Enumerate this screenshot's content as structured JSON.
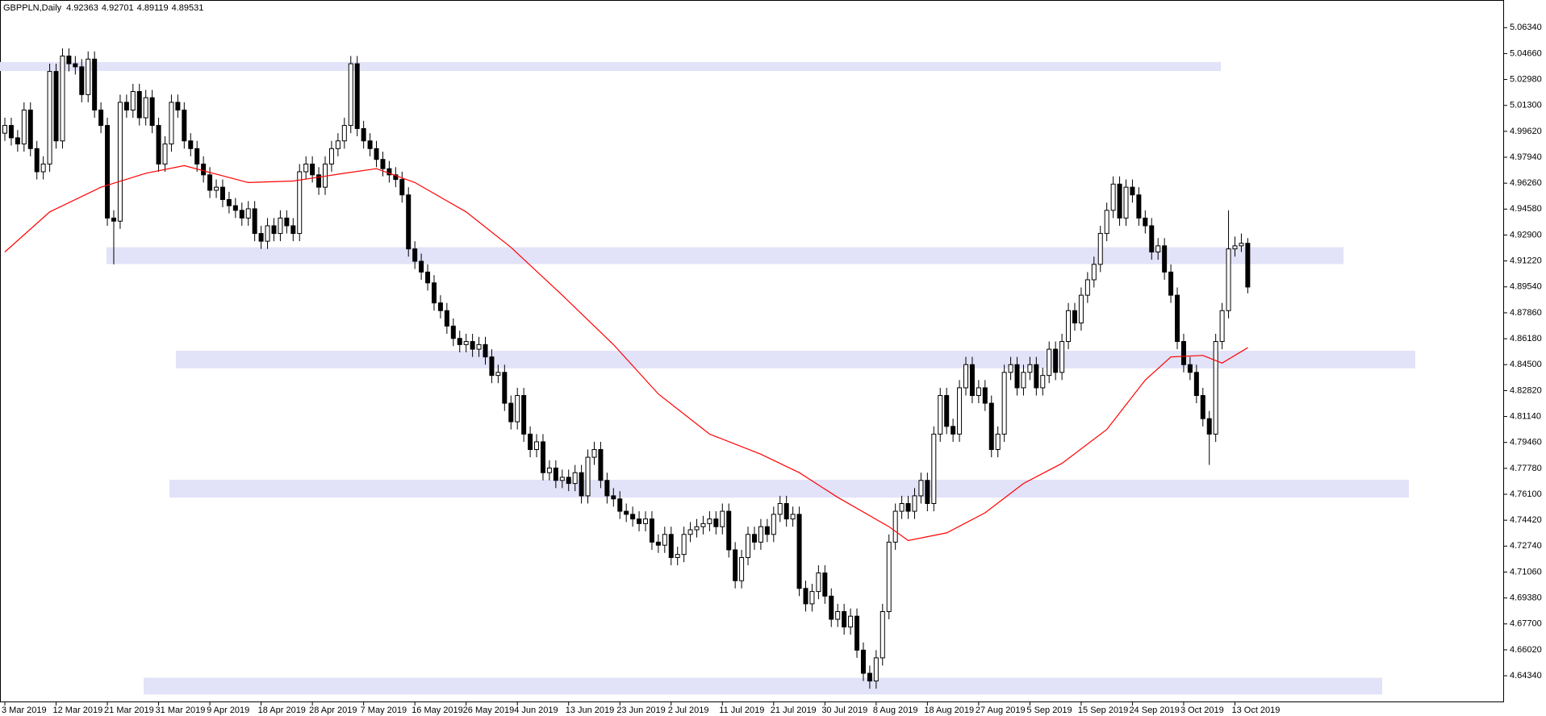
{
  "chart_data": {
    "type": "candlestick",
    "symbol": "GBPPLN,Daily",
    "header_values": [
      4.92363,
      4.92701,
      4.89119,
      4.89531
    ],
    "ylim": [
      4.6262,
      5.0813
    ],
    "yticks": [
      {
        "value": 5.0634,
        "label": "5.06340"
      },
      {
        "value": 5.0466,
        "label": "5.04660"
      },
      {
        "value": 5.0298,
        "label": "5.02980"
      },
      {
        "value": 5.013,
        "label": "5.01300"
      },
      {
        "value": 4.9962,
        "label": "4.99620"
      },
      {
        "value": 4.9794,
        "label": "4.97940"
      },
      {
        "value": 4.9626,
        "label": "4.96260"
      },
      {
        "value": 4.9458,
        "label": "4.94580"
      },
      {
        "value": 4.929,
        "label": "4.92900"
      },
      {
        "value": 4.9122,
        "label": "4.91220"
      },
      {
        "value": 4.8954,
        "label": "4.89540"
      },
      {
        "value": 4.8786,
        "label": "4.87860"
      },
      {
        "value": 4.8618,
        "label": "4.86180"
      },
      {
        "value": 4.845,
        "label": "4.84500"
      },
      {
        "value": 4.8282,
        "label": "4.82820"
      },
      {
        "value": 4.8114,
        "label": "4.81140"
      },
      {
        "value": 4.7946,
        "label": "4.79460"
      },
      {
        "value": 4.7778,
        "label": "4.77780"
      },
      {
        "value": 4.761,
        "label": "4.76100"
      },
      {
        "value": 4.7442,
        "label": "4.74420"
      },
      {
        "value": 4.7274,
        "label": "4.72740"
      },
      {
        "value": 4.7106,
        "label": "4.71060"
      },
      {
        "value": 4.6938,
        "label": "4.69380"
      },
      {
        "value": 4.677,
        "label": "4.67700"
      },
      {
        "value": 4.6602,
        "label": "4.66020"
      },
      {
        "value": 4.6434,
        "label": "4.64340"
      }
    ],
    "xticks": [
      "3 Mar 2019",
      "12 Mar 2019",
      "21 Mar 2019",
      "31 Mar 2019",
      "9 Apr 2019",
      "18 Apr 2019",
      "28 Apr 2019",
      "7 May 2019",
      "16 May 2019",
      "26 May 2019",
      "4 Jun 2019",
      "13 Jun 2019",
      "23 Jun 2019",
      "2 Jul 2019",
      "11 Jul 2019",
      "21 Jul 2019",
      "30 Jul 2019",
      "8 Aug 2019",
      "18 Aug 2019",
      "27 Aug 2019",
      "5 Sep 2019",
      "15 Sep 2019",
      "24 Sep 2019",
      "3 Oct 2019",
      "13 Oct 2019"
    ],
    "up_color": "#ffffff",
    "down_color": "#000000",
    "zone_color": "#e2e2f8",
    "zones": [
      [
        5.0411,
        5.0353
      ],
      [
        4.9211,
        4.9102
      ],
      [
        4.854,
        4.8426
      ],
      [
        4.7704,
        4.7589
      ],
      [
        4.6421,
        4.6313
      ]
    ],
    "ma": {
      "color": "#ff0000",
      "x": [
        0,
        7,
        15,
        22,
        28,
        38,
        45,
        53,
        58,
        64,
        72,
        79,
        87,
        95,
        102,
        110,
        118,
        124,
        130,
        138,
        141,
        147,
        153,
        159,
        165,
        172,
        178,
        182,
        187,
        190,
        194
      ],
      "values": [
        4.918,
        4.944,
        4.96,
        4.969,
        4.974,
        4.963,
        4.964,
        4.969,
        4.972,
        4.963,
        4.944,
        4.921,
        4.89,
        4.858,
        4.826,
        4.8,
        4.787,
        4.775,
        4.759,
        4.74,
        4.731,
        4.736,
        4.749,
        4.768,
        4.781,
        4.803,
        4.835,
        4.85,
        4.851,
        4.846,
        4.856
      ]
    },
    "candles": [
      [
        4.995,
        5.005,
        4.99,
        5.0
      ],
      [
        5.0,
        5.005,
        4.987,
        4.992
      ],
      [
        4.992,
        4.997,
        4.983,
        4.988
      ],
      [
        4.988,
        5.015,
        4.983,
        5.01
      ],
      [
        5.01,
        5.015,
        4.98,
        4.985
      ],
      [
        4.985,
        4.99,
        4.965,
        4.97
      ],
      [
        4.97,
        4.98,
        4.965,
        4.975
      ],
      [
        4.975,
        5.04,
        4.97,
        5.035
      ],
      [
        5.035,
        5.04,
        4.985,
        4.99
      ],
      [
        4.99,
        5.05,
        4.985,
        5.045
      ],
      [
        5.045,
        5.05,
        5.035,
        5.04
      ],
      [
        5.04,
        5.045,
        5.033,
        5.038
      ],
      [
        5.038,
        5.043,
        5.015,
        5.02
      ],
      [
        5.02,
        5.048,
        5.015,
        5.043
      ],
      [
        5.043,
        5.048,
        5.005,
        5.01
      ],
      [
        5.01,
        5.015,
        4.995,
        5.0
      ],
      [
        5.0,
        5.005,
        4.935,
        4.94
      ],
      [
        4.94,
        4.945,
        4.91,
        4.938
      ],
      [
        4.938,
        5.02,
        4.933,
        5.015
      ],
      [
        5.015,
        5.02,
        5.005,
        5.01
      ],
      [
        5.01,
        5.027,
        5.005,
        5.022
      ],
      [
        5.022,
        5.027,
        5.0,
        5.005
      ],
      [
        5.005,
        5.023,
        5.0,
        5.018
      ],
      [
        5.018,
        5.023,
        4.995,
        5.0
      ],
      [
        5.0,
        5.005,
        4.97,
        4.975
      ],
      [
        4.975,
        4.993,
        4.97,
        4.988
      ],
      [
        4.988,
        5.02,
        4.983,
        5.015
      ],
      [
        5.015,
        5.02,
        5.005,
        5.01
      ],
      [
        5.01,
        5.015,
        4.985,
        4.99
      ],
      [
        4.99,
        4.995,
        4.98,
        4.985
      ],
      [
        4.985,
        4.99,
        4.97,
        4.975
      ],
      [
        4.975,
        4.98,
        4.963,
        4.968
      ],
      [
        4.968,
        4.973,
        4.953,
        4.958
      ],
      [
        4.958,
        4.965,
        4.953,
        4.96
      ],
      [
        4.96,
        4.965,
        4.947,
        4.952
      ],
      [
        4.952,
        4.957,
        4.943,
        4.948
      ],
      [
        4.948,
        4.953,
        4.94,
        4.945
      ],
      [
        4.945,
        4.95,
        4.935,
        4.94
      ],
      [
        4.94,
        4.951,
        4.935,
        4.946
      ],
      [
        4.946,
        4.951,
        4.925,
        4.93
      ],
      [
        4.93,
        4.935,
        4.92,
        4.925
      ],
      [
        4.925,
        4.94,
        4.92,
        4.935
      ],
      [
        4.935,
        4.94,
        4.925,
        4.93
      ],
      [
        4.93,
        4.945,
        4.925,
        4.94
      ],
      [
        4.94,
        4.945,
        4.93,
        4.935
      ],
      [
        4.935,
        4.94,
        4.925,
        4.93
      ],
      [
        4.93,
        4.975,
        4.925,
        4.97
      ],
      [
        4.97,
        4.98,
        4.965,
        4.975
      ],
      [
        4.975,
        4.98,
        4.963,
        4.968
      ],
      [
        4.968,
        4.973,
        4.955,
        4.96
      ],
      [
        4.96,
        4.98,
        4.955,
        4.975
      ],
      [
        4.975,
        4.99,
        4.97,
        4.985
      ],
      [
        4.985,
        4.995,
        4.98,
        4.99
      ],
      [
        4.99,
        5.005,
        4.985,
        5.0
      ],
      [
        5.0,
        5.045,
        4.995,
        5.04
      ],
      [
        5.04,
        5.045,
        4.993,
        4.998
      ],
      [
        4.998,
        5.003,
        4.985,
        4.99
      ],
      [
        4.99,
        4.995,
        4.98,
        4.985
      ],
      [
        4.985,
        4.99,
        4.973,
        4.978
      ],
      [
        4.978,
        4.983,
        4.967,
        4.972
      ],
      [
        4.972,
        4.977,
        4.963,
        4.968
      ],
      [
        4.968,
        4.973,
        4.96,
        4.965
      ],
      [
        4.965,
        4.97,
        4.95,
        4.955
      ],
      [
        4.955,
        4.96,
        4.915,
        4.92
      ],
      [
        4.92,
        4.925,
        4.907,
        4.912
      ],
      [
        4.912,
        4.917,
        4.9,
        4.905
      ],
      [
        4.905,
        4.91,
        4.893,
        4.898
      ],
      [
        4.898,
        4.903,
        4.88,
        4.885
      ],
      [
        4.885,
        4.89,
        4.875,
        4.88
      ],
      [
        4.88,
        4.885,
        4.865,
        4.87
      ],
      [
        4.87,
        4.875,
        4.857,
        4.862
      ],
      [
        4.862,
        4.867,
        4.853,
        4.858
      ],
      [
        4.858,
        4.865,
        4.853,
        4.86
      ],
      [
        4.86,
        4.865,
        4.85,
        4.855
      ],
      [
        4.855,
        4.863,
        4.85,
        4.858
      ],
      [
        4.858,
        4.863,
        4.845,
        4.85
      ],
      [
        4.85,
        4.855,
        4.833,
        4.838
      ],
      [
        4.838,
        4.845,
        4.833,
        4.84
      ],
      [
        4.84,
        4.845,
        4.815,
        4.82
      ],
      [
        4.82,
        4.825,
        4.803,
        4.808
      ],
      [
        4.808,
        4.83,
        4.803,
        4.825
      ],
      [
        4.825,
        4.83,
        4.795,
        4.8
      ],
      [
        4.8,
        4.805,
        4.785,
        4.79
      ],
      [
        4.79,
        4.8,
        4.785,
        4.795
      ],
      [
        4.795,
        4.8,
        4.77,
        4.775
      ],
      [
        4.775,
        4.783,
        4.77,
        4.778
      ],
      [
        4.778,
        4.783,
        4.765,
        4.77
      ],
      [
        4.77,
        4.777,
        4.765,
        4.772
      ],
      [
        4.772,
        4.777,
        4.763,
        4.768
      ],
      [
        4.768,
        4.78,
        4.763,
        4.775
      ],
      [
        4.775,
        4.78,
        4.755,
        4.76
      ],
      [
        4.76,
        4.79,
        4.755,
        4.785
      ],
      [
        4.785,
        4.795,
        4.78,
        4.79
      ],
      [
        4.79,
        4.795,
        4.765,
        4.77
      ],
      [
        4.77,
        4.775,
        4.755,
        4.76
      ],
      [
        4.76,
        4.765,
        4.753,
        4.758
      ],
      [
        4.758,
        4.763,
        4.745,
        4.75
      ],
      [
        4.75,
        4.755,
        4.743,
        4.748
      ],
      [
        4.748,
        4.753,
        4.74,
        4.745
      ],
      [
        4.745,
        4.75,
        4.737,
        4.742
      ],
      [
        4.742,
        4.75,
        4.737,
        4.745
      ],
      [
        4.745,
        4.75,
        4.725,
        4.73
      ],
      [
        4.73,
        4.735,
        4.723,
        4.728
      ],
      [
        4.728,
        4.74,
        4.723,
        4.735
      ],
      [
        4.735,
        4.74,
        4.715,
        4.72
      ],
      [
        4.72,
        4.727,
        4.715,
        4.722
      ],
      [
        4.722,
        4.74,
        4.717,
        4.735
      ],
      [
        4.735,
        4.743,
        4.73,
        4.738
      ],
      [
        4.738,
        4.745,
        4.733,
        4.74
      ],
      [
        4.74,
        4.747,
        4.735,
        4.742
      ],
      [
        4.742,
        4.75,
        4.737,
        4.745
      ],
      [
        4.745,
        4.75,
        4.735,
        4.74
      ],
      [
        4.74,
        4.755,
        4.735,
        4.75
      ],
      [
        4.75,
        4.755,
        4.72,
        4.725
      ],
      [
        4.725,
        4.73,
        4.7,
        4.705
      ],
      [
        4.705,
        4.725,
        4.7,
        4.72
      ],
      [
        4.72,
        4.74,
        4.715,
        4.735
      ],
      [
        4.735,
        4.74,
        4.725,
        4.73
      ],
      [
        4.73,
        4.745,
        4.725,
        4.74
      ],
      [
        4.74,
        4.745,
        4.73,
        4.735
      ],
      [
        4.735,
        4.753,
        4.73,
        4.748
      ],
      [
        4.748,
        4.76,
        4.743,
        4.755
      ],
      [
        4.755,
        4.76,
        4.74,
        4.745
      ],
      [
        4.745,
        4.753,
        4.74,
        4.748
      ],
      [
        4.748,
        4.753,
        4.695,
        4.7
      ],
      [
        4.7,
        4.705,
        4.685,
        4.69
      ],
      [
        4.69,
        4.703,
        4.685,
        4.698
      ],
      [
        4.698,
        4.715,
        4.693,
        4.71
      ],
      [
        4.71,
        4.715,
        4.69,
        4.695
      ],
      [
        4.695,
        4.7,
        4.675,
        4.68
      ],
      [
        4.68,
        4.69,
        4.675,
        4.685
      ],
      [
        4.685,
        4.69,
        4.67,
        4.675
      ],
      [
        4.675,
        4.687,
        4.67,
        4.682
      ],
      [
        4.682,
        4.687,
        4.655,
        4.66
      ],
      [
        4.66,
        4.665,
        4.64,
        4.645
      ],
      [
        4.645,
        4.65,
        4.635,
        4.64
      ],
      [
        4.64,
        4.66,
        4.635,
        4.655
      ],
      [
        4.655,
        4.69,
        4.65,
        4.685
      ],
      [
        4.685,
        4.735,
        4.68,
        4.73
      ],
      [
        4.73,
        4.755,
        4.725,
        4.75
      ],
      [
        4.75,
        4.76,
        4.745,
        4.755
      ],
      [
        4.755,
        4.76,
        4.745,
        4.75
      ],
      [
        4.75,
        4.765,
        4.745,
        4.76
      ],
      [
        4.76,
        4.775,
        4.755,
        4.77
      ],
      [
        4.77,
        4.775,
        4.75,
        4.755
      ],
      [
        4.755,
        4.805,
        4.75,
        4.8
      ],
      [
        4.8,
        4.83,
        4.795,
        4.825
      ],
      [
        4.825,
        4.83,
        4.8,
        4.805
      ],
      [
        4.805,
        4.81,
        4.795,
        4.8
      ],
      [
        4.8,
        4.835,
        4.795,
        4.83
      ],
      [
        4.83,
        4.85,
        4.825,
        4.845
      ],
      [
        4.845,
        4.85,
        4.82,
        4.825
      ],
      [
        4.825,
        4.835,
        4.82,
        4.83
      ],
      [
        4.83,
        4.835,
        4.815,
        4.82
      ],
      [
        4.82,
        4.825,
        4.785,
        4.79
      ],
      [
        4.79,
        4.805,
        4.785,
        4.8
      ],
      [
        4.8,
        4.845,
        4.795,
        4.84
      ],
      [
        4.84,
        4.85,
        4.835,
        4.845
      ],
      [
        4.845,
        4.85,
        4.825,
        4.83
      ],
      [
        4.83,
        4.845,
        4.825,
        4.84
      ],
      [
        4.84,
        4.85,
        4.835,
        4.845
      ],
      [
        4.845,
        4.85,
        4.825,
        4.83
      ],
      [
        4.83,
        4.843,
        4.825,
        4.838
      ],
      [
        4.838,
        4.86,
        4.833,
        4.855
      ],
      [
        4.855,
        4.86,
        4.835,
        4.84
      ],
      [
        4.84,
        4.865,
        4.835,
        4.86
      ],
      [
        4.86,
        4.885,
        4.855,
        4.88
      ],
      [
        4.88,
        4.885,
        4.867,
        4.872
      ],
      [
        4.872,
        4.895,
        4.867,
        4.89
      ],
      [
        4.89,
        4.905,
        4.885,
        4.9
      ],
      [
        4.9,
        4.915,
        4.895,
        4.91
      ],
      [
        4.91,
        4.935,
        4.905,
        4.93
      ],
      [
        4.93,
        4.95,
        4.925,
        4.945
      ],
      [
        4.945,
        4.967,
        4.94,
        4.962
      ],
      [
        4.962,
        4.967,
        4.935,
        4.94
      ],
      [
        4.94,
        4.965,
        4.935,
        4.96
      ],
      [
        4.96,
        4.965,
        4.95,
        4.955
      ],
      [
        4.955,
        4.96,
        4.935,
        4.94
      ],
      [
        4.94,
        4.945,
        4.93,
        4.935
      ],
      [
        4.935,
        4.94,
        4.913,
        4.918
      ],
      [
        4.918,
        4.927,
        4.913,
        4.922
      ],
      [
        4.922,
        4.927,
        4.9,
        4.905
      ],
      [
        4.905,
        4.91,
        4.885,
        4.89
      ],
      [
        4.89,
        4.895,
        4.855,
        4.86
      ],
      [
        4.86,
        4.865,
        4.84,
        4.845
      ],
      [
        4.845,
        4.85,
        4.835,
        4.84
      ],
      [
        4.84,
        4.845,
        4.82,
        4.825
      ],
      [
        4.825,
        4.83,
        4.805,
        4.81
      ],
      [
        4.81,
        4.815,
        4.78,
        4.8
      ],
      [
        4.8,
        4.865,
        4.795,
        4.86
      ],
      [
        4.86,
        4.885,
        4.855,
        4.88
      ],
      [
        4.88,
        4.945,
        4.875,
        4.92
      ],
      [
        4.92,
        4.928,
        4.915,
        4.922
      ],
      [
        4.922,
        4.93,
        4.918,
        4.92363
      ],
      [
        4.92363,
        4.92701,
        4.89119,
        4.89531
      ]
    ]
  }
}
